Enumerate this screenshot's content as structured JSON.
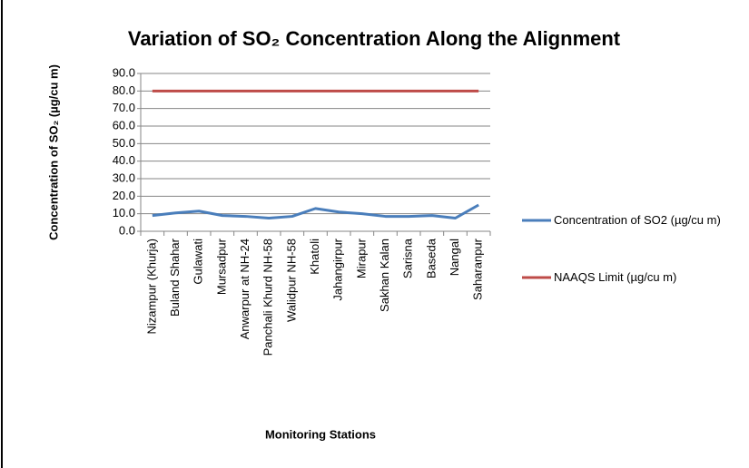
{
  "chart_data": {
    "type": "line",
    "title": "Variation of SO₂ Concentration Along the Alignment",
    "x_label": "Monitoring Stations",
    "y_label": "Concentration of SO₂ (µg/cu m)",
    "categories": [
      "Nizampur  (Khurja)",
      "Buland Shahar",
      "Gulawati",
      "Mursadpur",
      "Anwarpur at NH-24",
      "Panchali Khurd NH-58",
      "Walidpur NH-58",
      "Khatoli",
      "Jahangirpur",
      "Mirapur",
      "Sakhan Kalan",
      "Sarisna",
      "Baseda",
      "Nangal",
      "Saharanpur"
    ],
    "series": [
      {
        "name": "Concentration of SO2 (µg/cu m)",
        "color": "#4a7ebb",
        "values": [
          9,
          10.5,
          11.5,
          9,
          8.5,
          7.5,
          8.5,
          13,
          11,
          10,
          8.5,
          8.5,
          9,
          7.5,
          15
        ]
      },
      {
        "name": "NAAQS Limit (µg/cu m)",
        "color": "#be4b48",
        "values": [
          80,
          80,
          80,
          80,
          80,
          80,
          80,
          80,
          80,
          80,
          80,
          80,
          80,
          80,
          80
        ]
      }
    ],
    "ylim": [
      0,
      90
    ],
    "yticks": [
      {
        "value": 0,
        "label": "0.0"
      },
      {
        "value": 10,
        "label": "10.0"
      },
      {
        "value": 20,
        "label": "20.0"
      },
      {
        "value": 30,
        "label": "30.0"
      },
      {
        "value": 40,
        "label": "40.0"
      },
      {
        "value": 50,
        "label": "50.0"
      },
      {
        "value": 60,
        "label": "60.0"
      },
      {
        "value": 70,
        "label": "70.0"
      },
      {
        "value": 80,
        "label": "80.0"
      },
      {
        "value": 90,
        "label": "90.0"
      }
    ],
    "grid": true,
    "legend": "right"
  }
}
